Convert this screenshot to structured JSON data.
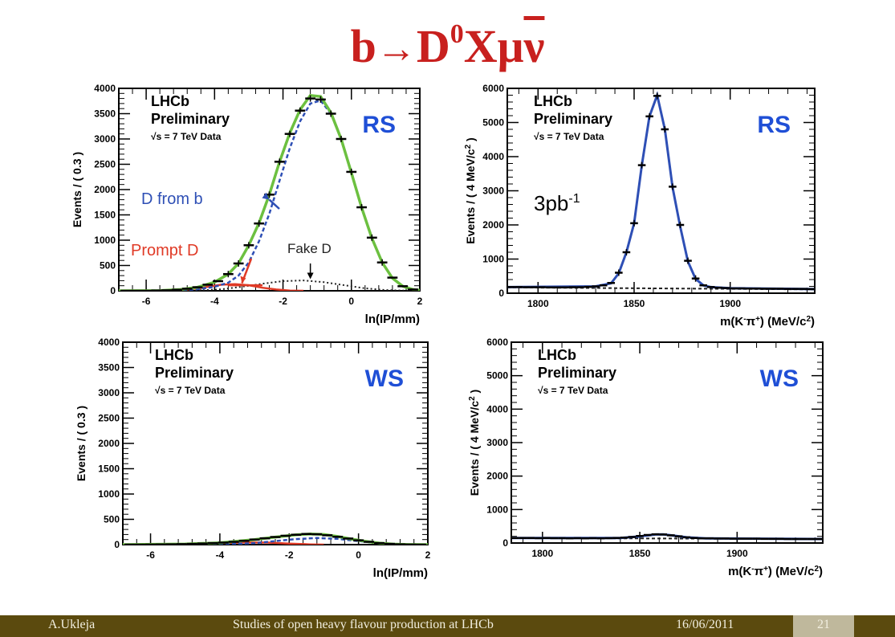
{
  "slide": {
    "title": {
      "b": "b",
      "arrow": "→",
      "d": "D",
      "sup": "0",
      "x": "X",
      "mu": "μ",
      "nu": "ν"
    }
  },
  "footer": {
    "author": "A.Ukleja",
    "talk": "Studies of open heavy flavour production at LHCb",
    "date": "16/06/2011",
    "page": "21"
  },
  "colors": {
    "title_red": "#c8201e",
    "total_fit": "#6cc040",
    "d_from_b": "#2e4fb5",
    "prompt_d": "#e03a26",
    "fake_d": "#222222",
    "rs_ws_label": "#1f4fd6",
    "footer_bg": "#5b4a0e",
    "footer_page_bg": "#bfb89c"
  },
  "chart_data": [
    {
      "id": "ip_rs",
      "type": "line",
      "watermark": [
        "LHCb",
        "Preliminary",
        "√s = 7 TeV Data"
      ],
      "tag": "RS",
      "xlabel": "ln(IP/mm)",
      "ylabel": "Events / ( 0.3 )",
      "xlim": [
        -6.8,
        2
      ],
      "ylim": [
        0,
        4000
      ],
      "xticks": [
        -6,
        -4,
        -2,
        0,
        2
      ],
      "yticks": [
        0,
        500,
        1000,
        1500,
        2000,
        2500,
        3000,
        3500,
        4000
      ],
      "data_points": {
        "x": [
          -6.6,
          -6.3,
          -6.0,
          -5.7,
          -5.4,
          -5.1,
          -4.8,
          -4.5,
          -4.2,
          -3.9,
          -3.6,
          -3.3,
          -3.0,
          -2.7,
          -2.4,
          -2.1,
          -1.8,
          -1.5,
          -1.2,
          -0.9,
          -0.6,
          -0.3,
          0.0,
          0.3,
          0.6,
          0.9,
          1.2,
          1.5,
          1.8
        ],
        "y": [
          0,
          0,
          0,
          5,
          10,
          20,
          40,
          70,
          120,
          190,
          330,
          540,
          900,
          1330,
          1900,
          2550,
          3100,
          3560,
          3800,
          3780,
          3500,
          3000,
          2350,
          1650,
          1050,
          560,
          260,
          90,
          25
        ]
      },
      "annotations": [
        {
          "text": "D from b",
          "color": "#2e4fb5"
        },
        {
          "text": "Prompt D",
          "color": "#e03a26"
        },
        {
          "text": "Fake D",
          "color": "#222222"
        }
      ],
      "series": [
        {
          "style": "total",
          "points": [
            [
              -6.8,
              0
            ],
            [
              -5.6,
              5
            ],
            [
              -5.0,
              25
            ],
            [
              -4.5,
              70
            ],
            [
              -4.0,
              170
            ],
            [
              -3.6,
              330
            ],
            [
              -3.3,
              540
            ],
            [
              -3.0,
              900
            ],
            [
              -2.7,
              1340
            ],
            [
              -2.4,
              1900
            ],
            [
              -2.1,
              2550
            ],
            [
              -1.8,
              3120
            ],
            [
              -1.5,
              3580
            ],
            [
              -1.2,
              3860
            ],
            [
              -0.9,
              3840
            ],
            [
              -0.6,
              3520
            ],
            [
              -0.3,
              3000
            ],
            [
              0.0,
              2330
            ],
            [
              0.3,
              1640
            ],
            [
              0.6,
              1040
            ],
            [
              0.9,
              560
            ],
            [
              1.2,
              250
            ],
            [
              1.5,
              90
            ],
            [
              1.8,
              25
            ],
            [
              2.0,
              10
            ]
          ]
        },
        {
          "style": "d-from-b",
          "points": [
            [
              -6.8,
              0
            ],
            [
              -5.0,
              10
            ],
            [
              -4.5,
              30
            ],
            [
              -4.0,
              80
            ],
            [
              -3.6,
              160
            ],
            [
              -3.3,
              300
            ],
            [
              -3.0,
              560
            ],
            [
              -2.7,
              980
            ],
            [
              -2.4,
              1520
            ],
            [
              -2.1,
              2180
            ],
            [
              -1.8,
              2820
            ],
            [
              -1.5,
              3350
            ],
            [
              -1.2,
              3700
            ],
            [
              -0.9,
              3760
            ],
            [
              -0.6,
              3500
            ],
            [
              -0.3,
              3000
            ],
            [
              0.0,
              2330
            ],
            [
              0.3,
              1640
            ],
            [
              0.6,
              1040
            ],
            [
              0.9,
              560
            ],
            [
              1.2,
              250
            ],
            [
              1.5,
              90
            ],
            [
              1.8,
              25
            ],
            [
              2.0,
              10
            ]
          ]
        },
        {
          "style": "prompt-d",
          "points": [
            [
              -6.8,
              0
            ],
            [
              -5.4,
              5
            ],
            [
              -5.0,
              15
            ],
            [
              -4.6,
              40
            ],
            [
              -4.2,
              80
            ],
            [
              -3.8,
              120
            ],
            [
              -3.4,
              130
            ],
            [
              -3.0,
              110
            ],
            [
              -2.6,
              60
            ],
            [
              -2.2,
              25
            ],
            [
              -1.8,
              5
            ],
            [
              -1.4,
              0
            ]
          ]
        },
        {
          "style": "fake-d",
          "points": [
            [
              -6.8,
              0
            ],
            [
              -4.5,
              5
            ],
            [
              -3.8,
              30
            ],
            [
              -3.2,
              80
            ],
            [
              -2.6,
              140
            ],
            [
              -2.0,
              190
            ],
            [
              -1.4,
              205
            ],
            [
              -0.8,
              170
            ],
            [
              -0.2,
              110
            ],
            [
              0.4,
              50
            ],
            [
              1.0,
              15
            ],
            [
              1.6,
              3
            ],
            [
              2.0,
              0
            ]
          ]
        }
      ]
    },
    {
      "id": "mass_rs",
      "type": "line",
      "watermark": [
        "LHCb",
        "Preliminary",
        "√s = 7 TeV Data"
      ],
      "tag": "RS",
      "lumi": "3pb-1",
      "xlabel": "m(K-π+) (MeV/c2)",
      "ylabel": "Events / ( 4 MeV/c2 )",
      "xlim": [
        1784,
        1944
      ],
      "ylim": [
        0,
        6000
      ],
      "xticks": [
        1800,
        1850,
        1900
      ],
      "yticks": [
        0,
        1000,
        2000,
        3000,
        4000,
        5000,
        6000
      ],
      "data_points": {
        "x": [
          1786,
          1790,
          1794,
          1798,
          1802,
          1806,
          1810,
          1814,
          1818,
          1822,
          1826,
          1830,
          1834,
          1838,
          1842,
          1846,
          1850,
          1854,
          1858,
          1862,
          1866,
          1870,
          1874,
          1878,
          1882,
          1886,
          1890,
          1894,
          1898,
          1902,
          1906,
          1910,
          1914,
          1918,
          1922,
          1926,
          1930,
          1934,
          1938,
          1942
        ],
        "y": [
          180,
          180,
          175,
          175,
          175,
          170,
          170,
          170,
          175,
          175,
          185,
          200,
          230,
          300,
          600,
          1200,
          2050,
          3750,
          5180,
          5780,
          4800,
          3120,
          2000,
          950,
          430,
          230,
          180,
          160,
          150,
          140,
          140,
          135,
          135,
          130,
          130,
          130,
          125,
          125,
          125,
          120
        ]
      },
      "fit": [
        [
          1784,
          180
        ],
        [
          1830,
          200
        ],
        [
          1838,
          290
        ],
        [
          1842,
          580
        ],
        [
          1846,
          1200
        ],
        [
          1850,
          2050
        ],
        [
          1854,
          3750
        ],
        [
          1858,
          5180
        ],
        [
          1862,
          5800
        ],
        [
          1866,
          4800
        ],
        [
          1870,
          3100
        ],
        [
          1874,
          1950
        ],
        [
          1878,
          930
        ],
        [
          1882,
          420
        ],
        [
          1886,
          230
        ],
        [
          1890,
          180
        ],
        [
          1900,
          145
        ],
        [
          1944,
          120
        ]
      ],
      "background": [
        [
          1784,
          170
        ],
        [
          1944,
          110
        ]
      ]
    },
    {
      "id": "ip_ws",
      "type": "line",
      "watermark": [
        "LHCb",
        "Preliminary",
        "√s = 7 TeV Data"
      ],
      "tag": "WS",
      "xlabel": "ln(IP/mm)",
      "ylabel": "Events / ( 0.3 )",
      "xlim": [
        -6.8,
        2
      ],
      "ylim": [
        0,
        4000
      ],
      "xticks": [
        -6,
        -4,
        -2,
        0,
        2
      ],
      "yticks": [
        0,
        500,
        1000,
        1500,
        2000,
        2500,
        3000,
        3500,
        4000
      ],
      "data_points": {
        "x": [
          -6.6,
          -6.3,
          -6.0,
          -5.7,
          -5.4,
          -5.1,
          -4.8,
          -4.5,
          -4.2,
          -3.9,
          -3.6,
          -3.3,
          -3.0,
          -2.7,
          -2.4,
          -2.1,
          -1.8,
          -1.5,
          -1.2,
          -0.9,
          -0.6,
          -0.3,
          0.0,
          0.3,
          0.6,
          0.9,
          1.2,
          1.5,
          1.8
        ],
        "y": [
          0,
          0,
          2,
          4,
          6,
          10,
          15,
          22,
          30,
          40,
          55,
          75,
          100,
          125,
          150,
          175,
          195,
          210,
          205,
          185,
          155,
          120,
          85,
          55,
          30,
          15,
          6,
          2,
          0
        ]
      },
      "series": [
        {
          "style": "total",
          "points": [
            [
              -6.8,
              0
            ],
            [
              -5.0,
              12
            ],
            [
              -4.0,
              35
            ],
            [
              -3.0,
              100
            ],
            [
              -2.4,
              150
            ],
            [
              -1.8,
              195
            ],
            [
              -1.4,
              210
            ],
            [
              -1.0,
              200
            ],
            [
              -0.6,
              160
            ],
            [
              -0.2,
              110
            ],
            [
              0.2,
              65
            ],
            [
              0.6,
              30
            ],
            [
              1.0,
              10
            ],
            [
              1.5,
              2
            ],
            [
              2.0,
              0
            ]
          ]
        },
        {
          "style": "prompt-d",
          "points": [
            [
              -6.8,
              0
            ],
            [
              -5.0,
              10
            ],
            [
              -4.0,
              30
            ],
            [
              -3.2,
              45
            ],
            [
              -2.6,
              40
            ],
            [
              -2.0,
              20
            ],
            [
              -1.4,
              5
            ],
            [
              -1.0,
              0
            ]
          ]
        },
        {
          "style": "d-from-b",
          "points": [
            [
              -6.8,
              0
            ],
            [
              -4.0,
              3
            ],
            [
              -3.0,
              30
            ],
            [
              -2.4,
              70
            ],
            [
              -1.8,
              110
            ],
            [
              -1.2,
              130
            ],
            [
              -0.6,
              115
            ],
            [
              0.0,
              70
            ],
            [
              0.6,
              25
            ],
            [
              1.2,
              5
            ],
            [
              2.0,
              0
            ]
          ]
        }
      ]
    },
    {
      "id": "mass_ws",
      "type": "line",
      "watermark": [
        "LHCb",
        "Preliminary",
        "√s = 7 TeV Data"
      ],
      "tag": "WS",
      "xlabel": "m(K-π+) (MeV/c2)",
      "ylabel": "Events / ( 4 MeV/c2 )",
      "xlim": [
        1784,
        1944
      ],
      "ylim": [
        0,
        6000
      ],
      "xticks": [
        1800,
        1850,
        1900
      ],
      "yticks": [
        0,
        1000,
        2000,
        3000,
        4000,
        5000,
        6000
      ],
      "data_points": {
        "x": [
          1786,
          1790,
          1794,
          1798,
          1802,
          1806,
          1810,
          1814,
          1818,
          1822,
          1826,
          1830,
          1834,
          1838,
          1842,
          1846,
          1850,
          1854,
          1858,
          1862,
          1866,
          1870,
          1874,
          1878,
          1882,
          1886,
          1890,
          1894,
          1898,
          1902,
          1906,
          1910,
          1914,
          1918,
          1922,
          1926,
          1930,
          1934,
          1938,
          1942
        ],
        "y": [
          150,
          150,
          150,
          145,
          150,
          145,
          145,
          140,
          145,
          140,
          145,
          140,
          145,
          150,
          160,
          180,
          210,
          240,
          260,
          255,
          230,
          200,
          170,
          150,
          140,
          140,
          135,
          135,
          130,
          130,
          130,
          130,
          125,
          125,
          125,
          120,
          120,
          120,
          120,
          120
        ]
      },
      "fit": [
        [
          1784,
          150
        ],
        [
          1840,
          150
        ],
        [
          1850,
          200
        ],
        [
          1858,
          255
        ],
        [
          1862,
          260
        ],
        [
          1866,
          230
        ],
        [
          1874,
          170
        ],
        [
          1884,
          140
        ],
        [
          1944,
          120
        ]
      ],
      "background": [
        [
          1784,
          150
        ],
        [
          1944,
          120
        ]
      ]
    }
  ]
}
